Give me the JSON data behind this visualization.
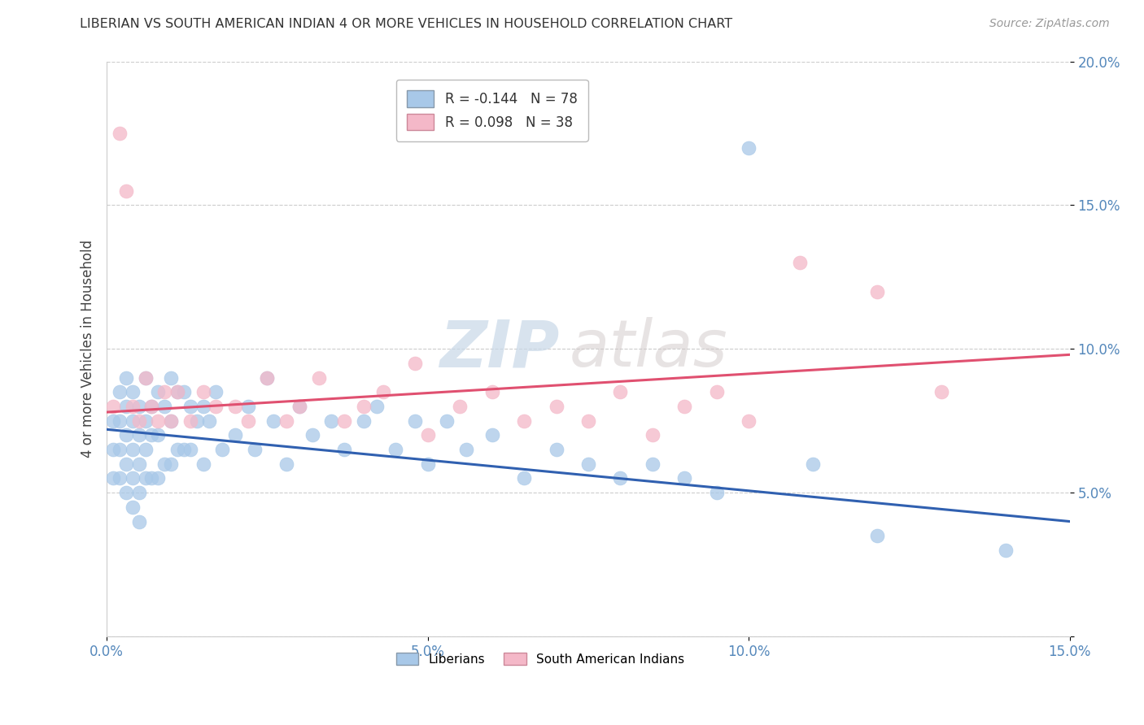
{
  "title": "LIBERIAN VS SOUTH AMERICAN INDIAN 4 OR MORE VEHICLES IN HOUSEHOLD CORRELATION CHART",
  "source": "Source: ZipAtlas.com",
  "ylabel_label": "4 or more Vehicles in Household",
  "xlim": [
    0.0,
    0.15
  ],
  "ylim": [
    0.0,
    0.2
  ],
  "xticks": [
    0.0,
    0.05,
    0.1,
    0.15
  ],
  "yticks": [
    0.0,
    0.05,
    0.1,
    0.15,
    0.2
  ],
  "xticklabels": [
    "0.0%",
    "5.0%",
    "10.0%",
    "15.0%"
  ],
  "yticklabels": [
    "",
    "5.0%",
    "10.0%",
    "15.0%",
    "20.0%"
  ],
  "blue_R": -0.144,
  "blue_N": 78,
  "pink_R": 0.098,
  "pink_N": 38,
  "blue_color": "#a8c8e8",
  "pink_color": "#f4b8c8",
  "blue_line_color": "#3060b0",
  "pink_line_color": "#e05070",
  "legend_label_blue": "Liberians",
  "legend_label_pink": "South American Indians",
  "watermark_zip": "ZIP",
  "watermark_atlas": "atlas",
  "blue_x": [
    0.001,
    0.001,
    0.001,
    0.002,
    0.002,
    0.002,
    0.002,
    0.003,
    0.003,
    0.003,
    0.003,
    0.003,
    0.004,
    0.004,
    0.004,
    0.004,
    0.004,
    0.005,
    0.005,
    0.005,
    0.005,
    0.005,
    0.006,
    0.006,
    0.006,
    0.006,
    0.007,
    0.007,
    0.007,
    0.008,
    0.008,
    0.008,
    0.009,
    0.009,
    0.01,
    0.01,
    0.01,
    0.011,
    0.011,
    0.012,
    0.012,
    0.013,
    0.013,
    0.014,
    0.015,
    0.015,
    0.016,
    0.017,
    0.018,
    0.02,
    0.022,
    0.023,
    0.025,
    0.026,
    0.028,
    0.03,
    0.032,
    0.035,
    0.037,
    0.04,
    0.042,
    0.045,
    0.048,
    0.05,
    0.053,
    0.056,
    0.06,
    0.065,
    0.07,
    0.075,
    0.08,
    0.085,
    0.09,
    0.095,
    0.1,
    0.11,
    0.12,
    0.14
  ],
  "blue_y": [
    0.075,
    0.065,
    0.055,
    0.085,
    0.075,
    0.065,
    0.055,
    0.09,
    0.08,
    0.07,
    0.06,
    0.05,
    0.085,
    0.075,
    0.065,
    0.055,
    0.045,
    0.08,
    0.07,
    0.06,
    0.05,
    0.04,
    0.09,
    0.075,
    0.065,
    0.055,
    0.08,
    0.07,
    0.055,
    0.085,
    0.07,
    0.055,
    0.08,
    0.06,
    0.09,
    0.075,
    0.06,
    0.085,
    0.065,
    0.085,
    0.065,
    0.08,
    0.065,
    0.075,
    0.08,
    0.06,
    0.075,
    0.085,
    0.065,
    0.07,
    0.08,
    0.065,
    0.09,
    0.075,
    0.06,
    0.08,
    0.07,
    0.075,
    0.065,
    0.075,
    0.08,
    0.065,
    0.075,
    0.06,
    0.075,
    0.065,
    0.07,
    0.055,
    0.065,
    0.06,
    0.055,
    0.06,
    0.055,
    0.05,
    0.17,
    0.06,
    0.035,
    0.03
  ],
  "pink_x": [
    0.001,
    0.002,
    0.003,
    0.004,
    0.005,
    0.006,
    0.007,
    0.008,
    0.009,
    0.01,
    0.011,
    0.013,
    0.015,
    0.017,
    0.02,
    0.022,
    0.025,
    0.028,
    0.03,
    0.033,
    0.037,
    0.04,
    0.043,
    0.048,
    0.05,
    0.055,
    0.06,
    0.065,
    0.07,
    0.075,
    0.08,
    0.085,
    0.09,
    0.095,
    0.1,
    0.108,
    0.12,
    0.13
  ],
  "pink_y": [
    0.08,
    0.175,
    0.155,
    0.08,
    0.075,
    0.09,
    0.08,
    0.075,
    0.085,
    0.075,
    0.085,
    0.075,
    0.085,
    0.08,
    0.08,
    0.075,
    0.09,
    0.075,
    0.08,
    0.09,
    0.075,
    0.08,
    0.085,
    0.095,
    0.07,
    0.08,
    0.085,
    0.075,
    0.08,
    0.075,
    0.085,
    0.07,
    0.08,
    0.085,
    0.075,
    0.13,
    0.12,
    0.085
  ],
  "blue_line_x0": 0.0,
  "blue_line_y0": 0.072,
  "blue_line_x1": 0.15,
  "blue_line_y1": 0.04,
  "pink_line_x0": 0.0,
  "pink_line_y0": 0.078,
  "pink_line_x1": 0.15,
  "pink_line_y1": 0.098
}
